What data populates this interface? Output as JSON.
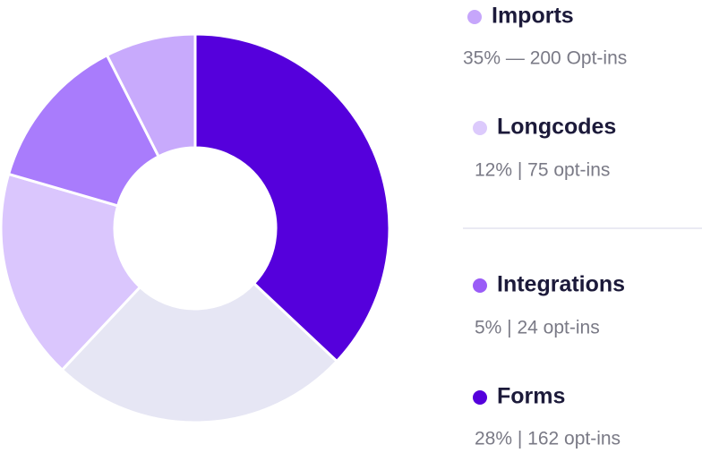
{
  "chart_data": {
    "type": "donut",
    "categories": [
      null,
      null,
      null,
      null,
      null
    ],
    "values": [
      37,
      25,
      17.5,
      13,
      7.5
    ],
    "colors": [
      "#5500dc",
      "#e6e6f4",
      "#dac6fd",
      "#a97cfc",
      "#c8aafc"
    ]
  },
  "legend": {
    "items": [
      {
        "name": "Imports",
        "color": "#c6a6fb",
        "text": "35% — 200 Opt-ins"
      },
      {
        "name": "Longcodes",
        "color": "#dccafc",
        "text": "12% | 75 opt-ins"
      },
      {
        "name": "Integrations",
        "color": "#9a5cf7",
        "text": "5% | 24 opt-ins"
      },
      {
        "name": "Forms",
        "color": "#5500dc",
        "text": "28% | 162 opt-ins"
      }
    ]
  }
}
